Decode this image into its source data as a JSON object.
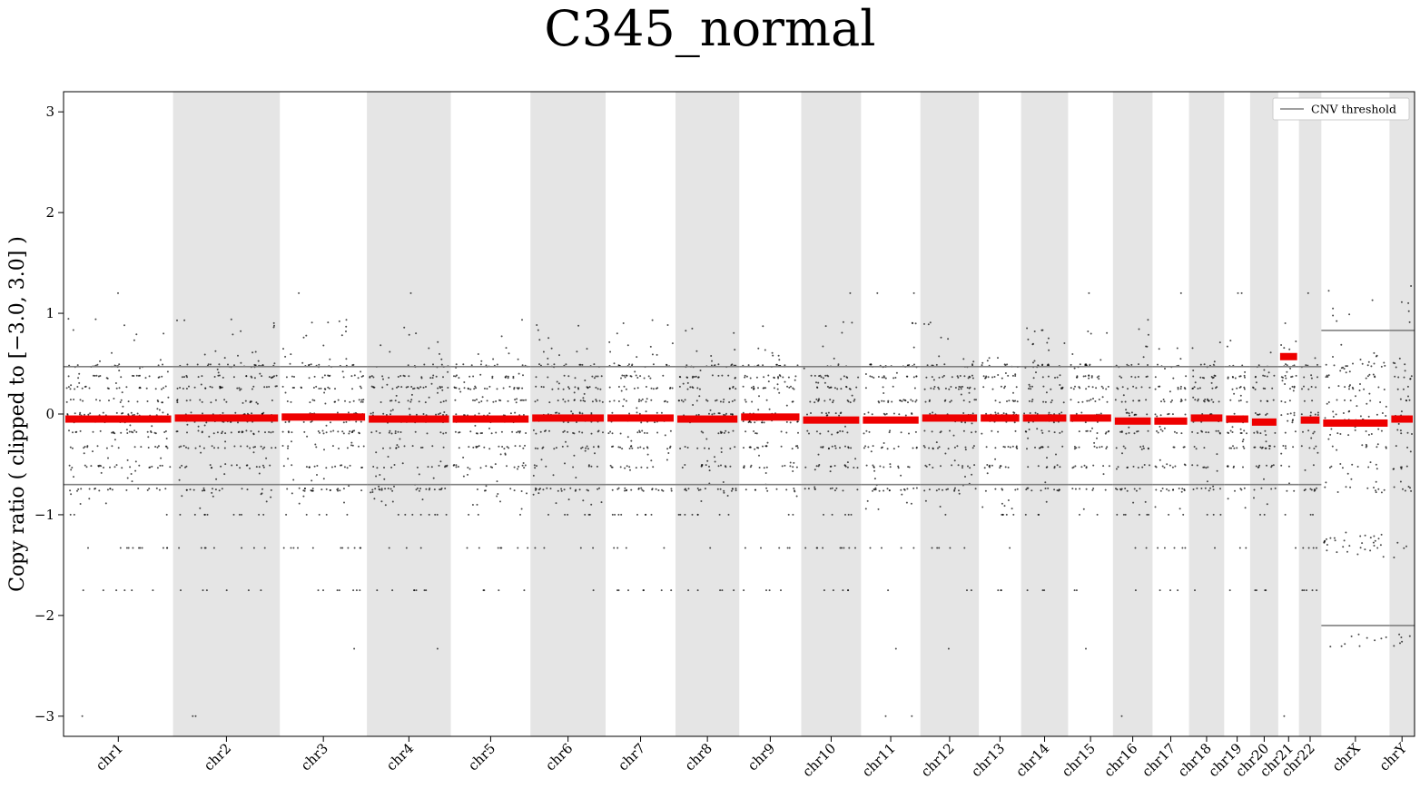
{
  "chart_data": {
    "type": "scatter",
    "title": "C345_normal",
    "ylabel": "Copy ratio ( clipped to [−3.0, 3.0] )",
    "xlabel": "",
    "ylim": [
      -3.2,
      3.2
    ],
    "yticks": [
      3,
      2,
      1,
      0,
      -1,
      -2,
      -3
    ],
    "ytick_labels": [
      "3",
      "2",
      "1",
      "0",
      "−1",
      "−2",
      "−3"
    ],
    "legend": {
      "entries": [
        "CNV threshold"
      ],
      "placement": "top-right"
    },
    "background": "#ffffff",
    "band_color": "#e5e5e5",
    "point_color": "#000000",
    "segment_color": "#ee0000",
    "threshold_color": "#808080",
    "chromosomes": [
      {
        "name": "chr1",
        "length": 249,
        "shaded": false,
        "segment": -0.05,
        "threshold": [
          0.47,
          -0.7
        ]
      },
      {
        "name": "chr2",
        "length": 243,
        "shaded": true,
        "segment": -0.04,
        "threshold": [
          0.47,
          -0.7
        ]
      },
      {
        "name": "chr3",
        "length": 198,
        "shaded": false,
        "segment": -0.03,
        "threshold": [
          0.47,
          -0.7
        ]
      },
      {
        "name": "chr4",
        "length": 191,
        "shaded": true,
        "segment": -0.05,
        "threshold": [
          0.47,
          -0.7
        ]
      },
      {
        "name": "chr5",
        "length": 181,
        "shaded": false,
        "segment": -0.05,
        "threshold": [
          0.47,
          -0.7
        ]
      },
      {
        "name": "chr6",
        "length": 171,
        "shaded": true,
        "segment": -0.04,
        "threshold": [
          0.47,
          -0.7
        ]
      },
      {
        "name": "chr7",
        "length": 159,
        "shaded": false,
        "segment": -0.04,
        "threshold": [
          0.47,
          -0.7
        ]
      },
      {
        "name": "chr8",
        "length": 145,
        "shaded": true,
        "segment": -0.05,
        "threshold": [
          0.47,
          -0.7
        ]
      },
      {
        "name": "chr9",
        "length": 141,
        "shaded": false,
        "segment": -0.03,
        "threshold": [
          0.47,
          -0.7
        ]
      },
      {
        "name": "chr10",
        "length": 136,
        "shaded": true,
        "segment": -0.06,
        "threshold": [
          0.47,
          -0.7
        ]
      },
      {
        "name": "chr11",
        "length": 135,
        "shaded": false,
        "segment": -0.06,
        "threshold": [
          0.47,
          -0.7
        ]
      },
      {
        "name": "chr12",
        "length": 133,
        "shaded": true,
        "segment": -0.04,
        "threshold": [
          0.47,
          -0.7
        ]
      },
      {
        "name": "chr13",
        "length": 96,
        "shaded": false,
        "segment": -0.04,
        "threshold": [
          0.47,
          -0.7
        ]
      },
      {
        "name": "chr14",
        "length": 107,
        "shaded": true,
        "segment": -0.04,
        "threshold": [
          0.47,
          -0.7
        ]
      },
      {
        "name": "chr15",
        "length": 102,
        "shaded": false,
        "segment": -0.04,
        "threshold": [
          0.47,
          -0.7
        ]
      },
      {
        "name": "chr16",
        "length": 90,
        "shaded": true,
        "segment": -0.07,
        "threshold": [
          0.47,
          -0.7
        ]
      },
      {
        "name": "chr17",
        "length": 83,
        "shaded": false,
        "segment": -0.07,
        "threshold": [
          0.47,
          -0.7
        ]
      },
      {
        "name": "chr18",
        "length": 80,
        "shaded": true,
        "segment": -0.04,
        "threshold": [
          0.47,
          -0.7
        ]
      },
      {
        "name": "chr19",
        "length": 59,
        "shaded": false,
        "segment": -0.05,
        "threshold": [
          0.47,
          -0.7
        ]
      },
      {
        "name": "chr20",
        "length": 64,
        "shaded": true,
        "segment": -0.08,
        "threshold": [
          0.47,
          -0.7
        ]
      },
      {
        "name": "chr21",
        "length": 47,
        "shaded": false,
        "segment": 0.57,
        "threshold": [
          0.47,
          -0.7
        ]
      },
      {
        "name": "chr22",
        "length": 51,
        "shaded": true,
        "segment": -0.06,
        "threshold": [
          0.47,
          -0.7
        ]
      },
      {
        "name": "chrX",
        "length": 155,
        "shaded": false,
        "segment": -0.09,
        "threshold": [
          0.83,
          -2.1
        ]
      },
      {
        "name": "chrY",
        "length": 57,
        "shaded": true,
        "segment": -0.05,
        "threshold": [
          0.83,
          -2.1
        ]
      }
    ],
    "notes_points": "Each chromosome shows dense per-bin copy-ratio points concentrated in horizontal strata between about -0.75 and 0.75, with sparse outliers between -3 and 1.45."
  }
}
